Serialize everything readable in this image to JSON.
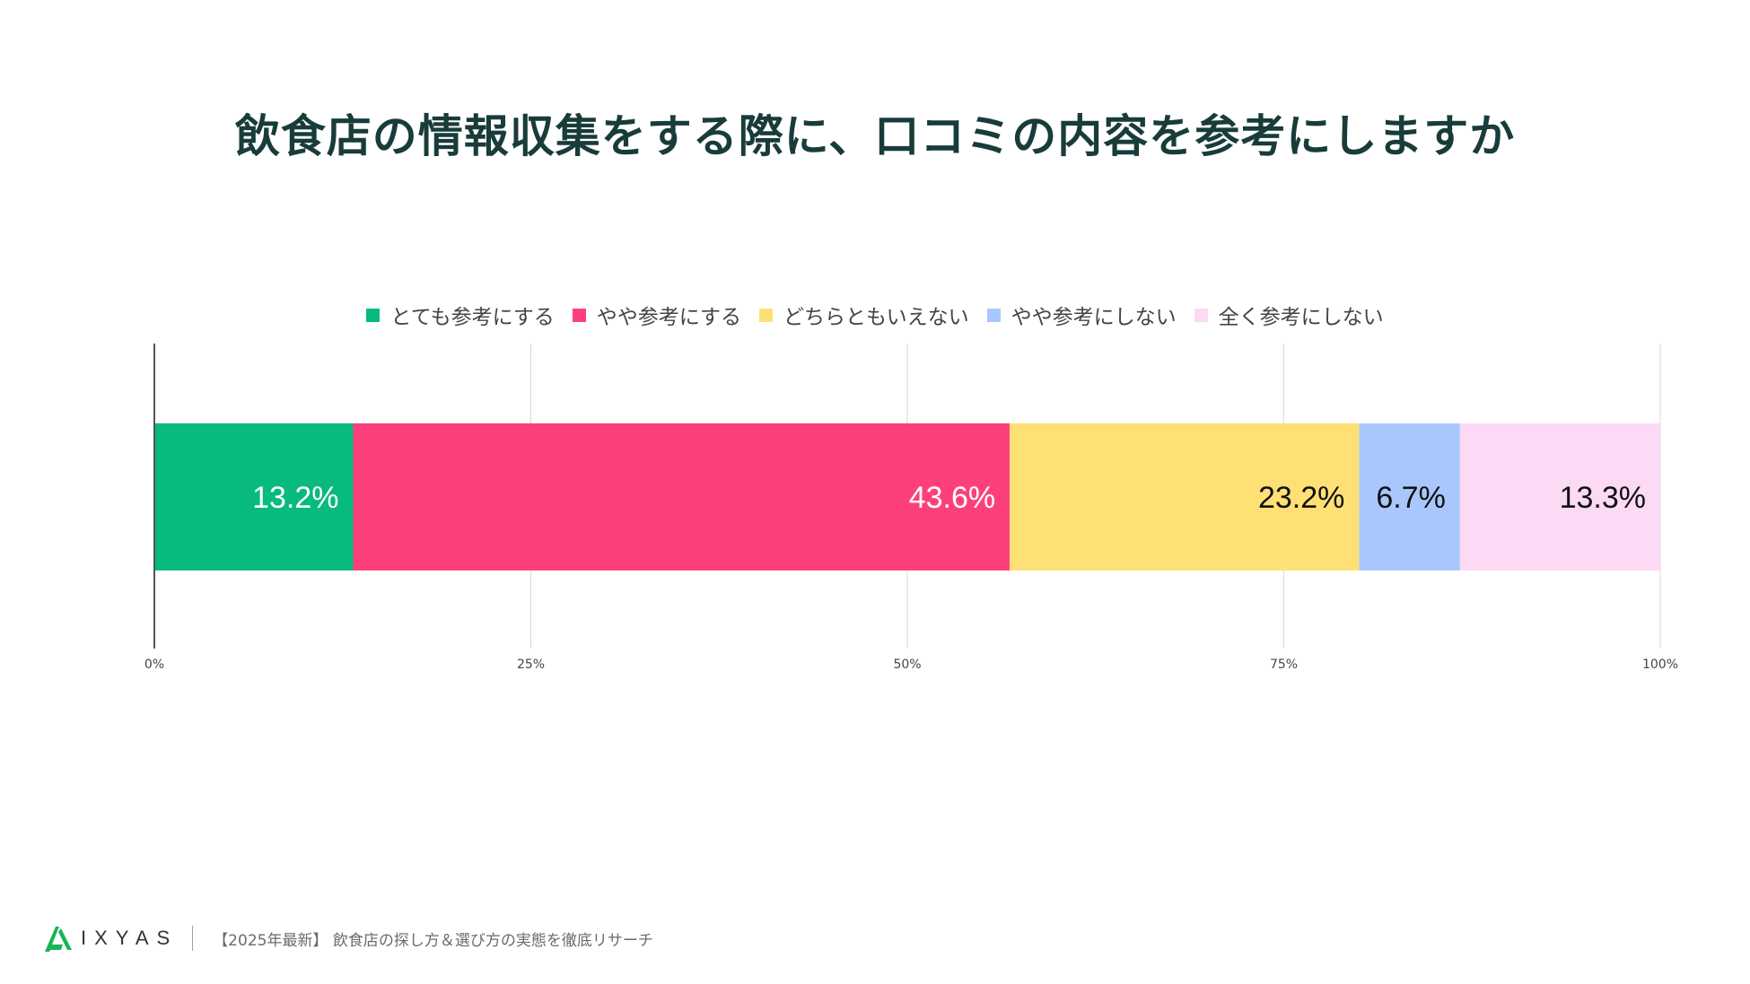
{
  "chart_data": {
    "type": "bar",
    "orientation": "horizontal-stacked",
    "title": "飲食店の情報収集をする際に、口コミの内容を参考にしますか",
    "categories": [
      ""
    ],
    "series": [
      {
        "name": "とても参考にする",
        "values": [
          13.2
        ],
        "label": "13.2%",
        "color": "#08ba7c",
        "label_color": "#ffffff"
      },
      {
        "name": "やや参考にする",
        "values": [
          43.6
        ],
        "label": "43.6%",
        "color": "#fd407b",
        "label_color": "#ffffff"
      },
      {
        "name": "どちらともいえない",
        "values": [
          23.2
        ],
        "label": "23.2%",
        "color": "#ffe075",
        "label_color": "#111111"
      },
      {
        "name": "やや参考にしない",
        "values": [
          6.7
        ],
        "label": "6.7%",
        "color": "#aac7fd",
        "label_color": "#111111"
      },
      {
        "name": "全く参考にしない",
        "values": [
          13.3
        ],
        "label": "13.3%",
        "color": "#fcdaf6",
        "label_color": "#111111"
      }
    ],
    "xlim": [
      0,
      100
    ],
    "x_ticks": [
      "0%",
      "25%",
      "50%",
      "75%",
      "100%"
    ],
    "grid": true,
    "legend_position": "top"
  },
  "footer": {
    "logo_text": "IXYAS",
    "caption": "【2025年最新】 飲食店の探し方＆選び方の実態を徹底リサーチ"
  }
}
